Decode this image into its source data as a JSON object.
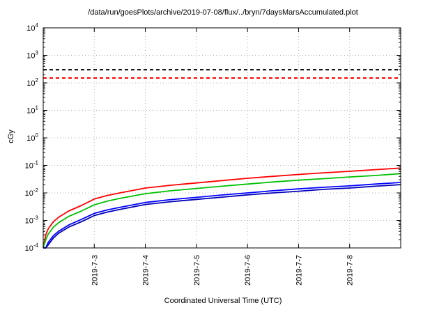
{
  "chart_data": {
    "type": "line",
    "title": "/data/run/goesPlots/archive/2019-07-08/flux/../bryn/7daysMarsAccumulated.plot",
    "xlabel": "Coordinated Universal Time (UTC)",
    "ylabel": "cGy",
    "grid": true,
    "legend": "none",
    "x_axis": {
      "unit": "days",
      "min": 0,
      "max": 7,
      "ticks": [
        {
          "pos": 1,
          "label": "2019-7-3"
        },
        {
          "pos": 2,
          "label": "2019-7-4"
        },
        {
          "pos": 3,
          "label": "2019-7-5"
        },
        {
          "pos": 4,
          "label": "2019-7-6"
        },
        {
          "pos": 5,
          "label": "2019-7-7"
        },
        {
          "pos": 6,
          "label": "2019-7-8"
        }
      ]
    },
    "y_axis": {
      "scale": "log",
      "min_exponent": -4,
      "max_exponent": 4,
      "ylim": [
        0.0001,
        10000
      ],
      "tick_exponents": [
        -4,
        -3,
        -2,
        -1,
        0,
        1,
        2,
        3,
        4
      ]
    },
    "reference_lines": [
      {
        "name": "upper-limit-line",
        "value": 300,
        "color": "#000000",
        "style": "dashed"
      },
      {
        "name": "lower-limit-line",
        "value": 150,
        "color": "#ff0000",
        "style": "dashed"
      }
    ],
    "x": [
      0,
      0.05,
      0.1,
      0.2,
      0.3,
      0.5,
      0.75,
      1,
      1.25,
      1.5,
      2,
      2.5,
      3,
      3.5,
      4,
      4.5,
      5,
      5.5,
      6,
      6.5,
      7
    ],
    "series": [
      {
        "name": "red-accumulated",
        "color": "#ff0000",
        "values": [
          0.0001,
          0.0003,
          0.0005,
          0.0009,
          0.0013,
          0.0022,
          0.0035,
          0.006,
          0.008,
          0.01,
          0.015,
          0.019,
          0.023,
          0.028,
          0.034,
          0.04,
          0.047,
          0.054,
          0.061,
          0.07,
          0.08
        ]
      },
      {
        "name": "green-accumulated",
        "color": "#00c000",
        "values": [
          0.0001,
          0.0002,
          0.00032,
          0.00057,
          0.00082,
          0.0014,
          0.0022,
          0.0037,
          0.005,
          0.0063,
          0.0094,
          0.012,
          0.0145,
          0.0175,
          0.021,
          0.025,
          0.029,
          0.033,
          0.038,
          0.043,
          0.05
        ]
      },
      {
        "name": "blue-accumulated",
        "color": "#0000ff",
        "values": [
          0.0001,
          0.0001,
          0.00016,
          0.00028,
          0.0004,
          0.00068,
          0.0011,
          0.0018,
          0.0024,
          0.003,
          0.0045,
          0.0057,
          0.0069,
          0.0084,
          0.01,
          0.012,
          0.014,
          0.016,
          0.018,
          0.021,
          0.024
        ]
      },
      {
        "name": "dark-blue-accumulated",
        "color": "#0000b8",
        "values": [
          0.0001,
          0.0001,
          0.00013,
          0.00023,
          0.00034,
          0.00057,
          0.0009,
          0.0015,
          0.002,
          0.0025,
          0.0038,
          0.0048,
          0.0058,
          0.007,
          0.0085,
          0.01,
          0.0115,
          0.0135,
          0.015,
          0.0175,
          0.02
        ]
      }
    ],
    "grid_color": "#b4b4b4"
  }
}
